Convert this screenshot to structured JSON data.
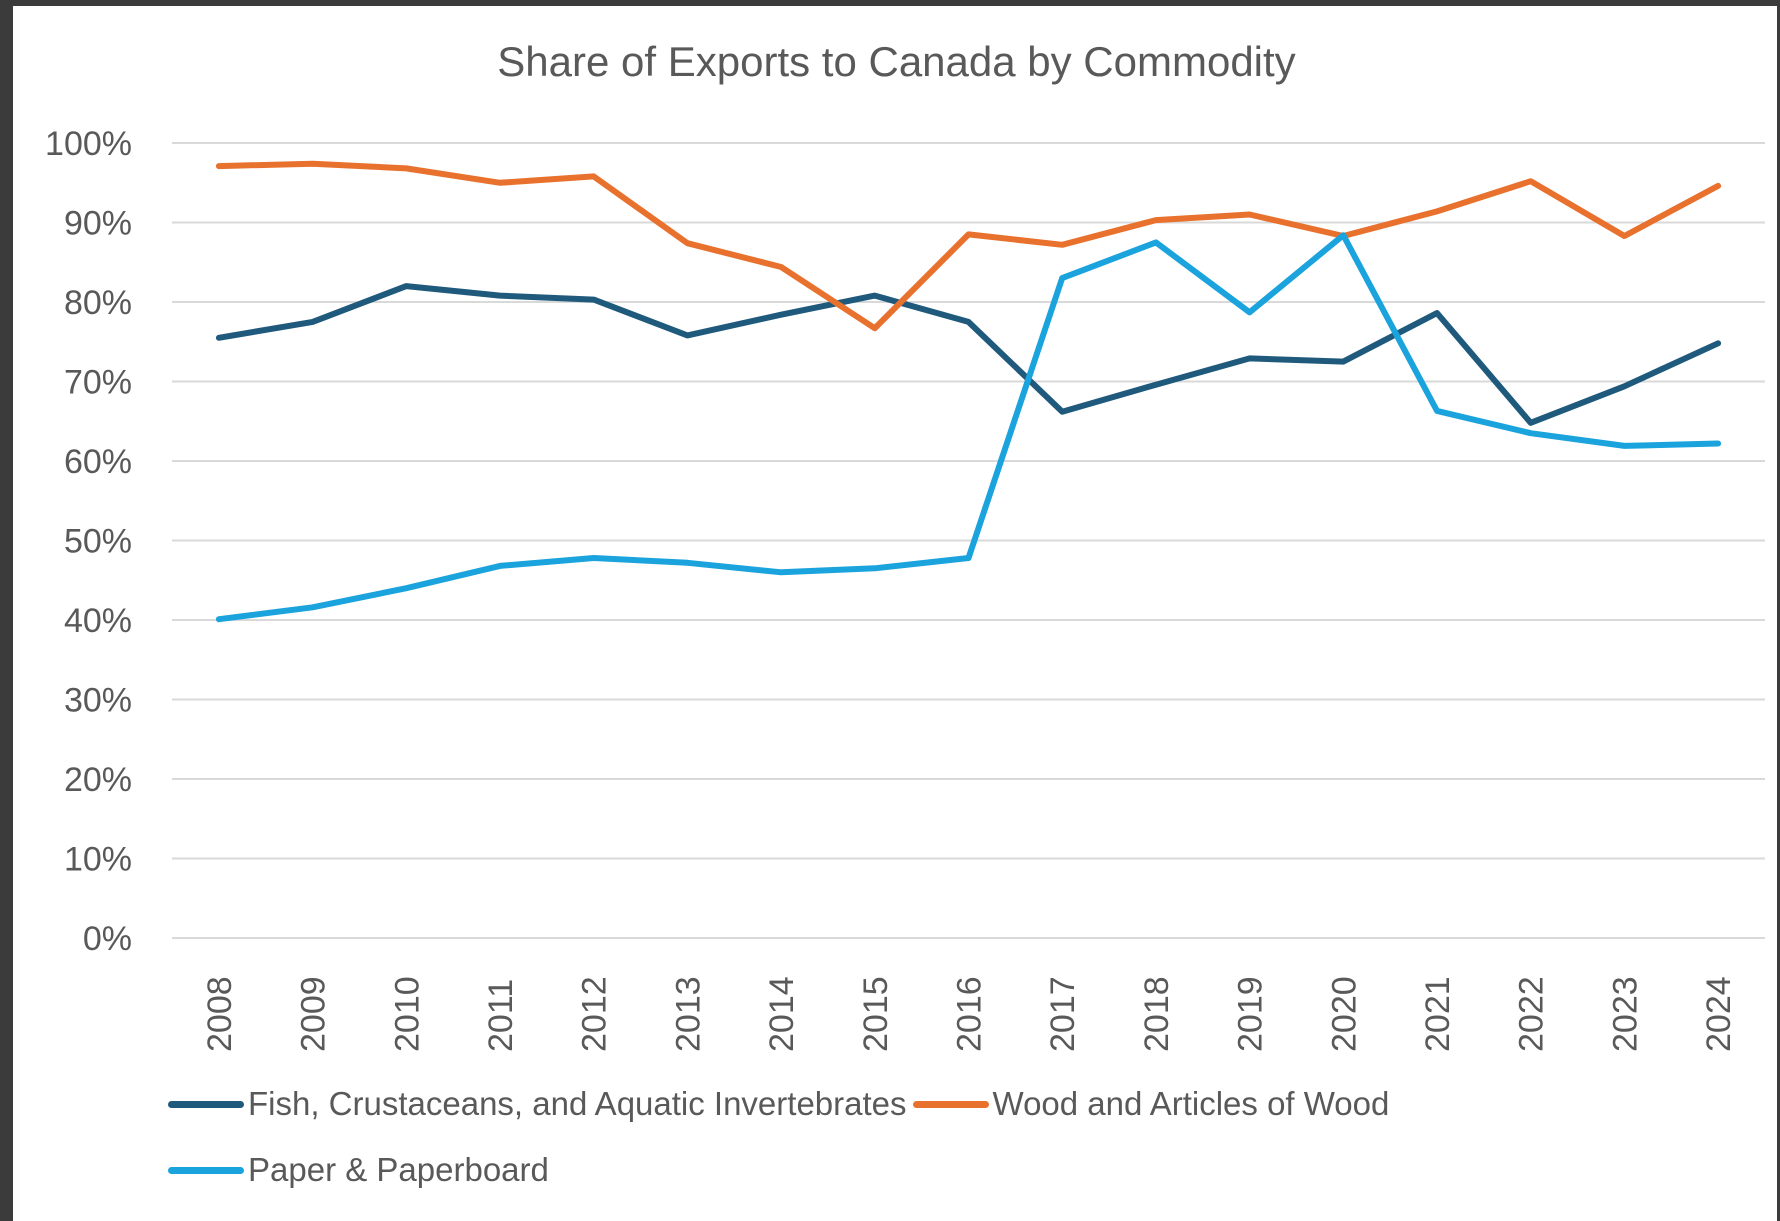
{
  "chart_data": {
    "type": "line",
    "title": "Share of Exports to Canada by Commodity",
    "xlabel": "",
    "ylabel": "",
    "ylim": [
      0,
      100
    ],
    "yticks": [
      "0%",
      "10%",
      "20%",
      "30%",
      "40%",
      "50%",
      "60%",
      "70%",
      "80%",
      "90%",
      "100%"
    ],
    "grid": true,
    "legend_position": "bottom",
    "categories": [
      "2008",
      "2009",
      "2010",
      "2011",
      "2012",
      "2013",
      "2014",
      "2015",
      "2016",
      "2017",
      "2018",
      "2019",
      "2020",
      "2021",
      "2022",
      "2023",
      "2024"
    ],
    "series": [
      {
        "name": "Fish, Crustaceans, and Aquatic Invertebrates",
        "color": "#1f5a7d",
        "values": [
          75.5,
          77.5,
          82.0,
          80.8,
          80.3,
          75.8,
          78.4,
          80.8,
          77.5,
          66.2,
          69.6,
          72.9,
          72.5,
          78.6,
          64.8,
          69.4,
          74.8
        ]
      },
      {
        "name": "Wood and Articles of Wood",
        "color": "#e8712e",
        "values": [
          97.1,
          97.4,
          96.8,
          95.0,
          95.8,
          87.4,
          84.4,
          76.7,
          88.5,
          87.2,
          90.3,
          91.0,
          88.3,
          91.4,
          95.2,
          88.3,
          94.6
        ]
      },
      {
        "name": "Paper & Paperboard",
        "color": "#1aa3dc",
        "values": [
          40.1,
          41.6,
          44.0,
          46.8,
          47.8,
          47.2,
          46.0,
          46.5,
          47.8,
          83.0,
          87.5,
          78.7,
          88.4,
          66.3,
          63.5,
          61.9,
          62.2
        ]
      }
    ]
  }
}
